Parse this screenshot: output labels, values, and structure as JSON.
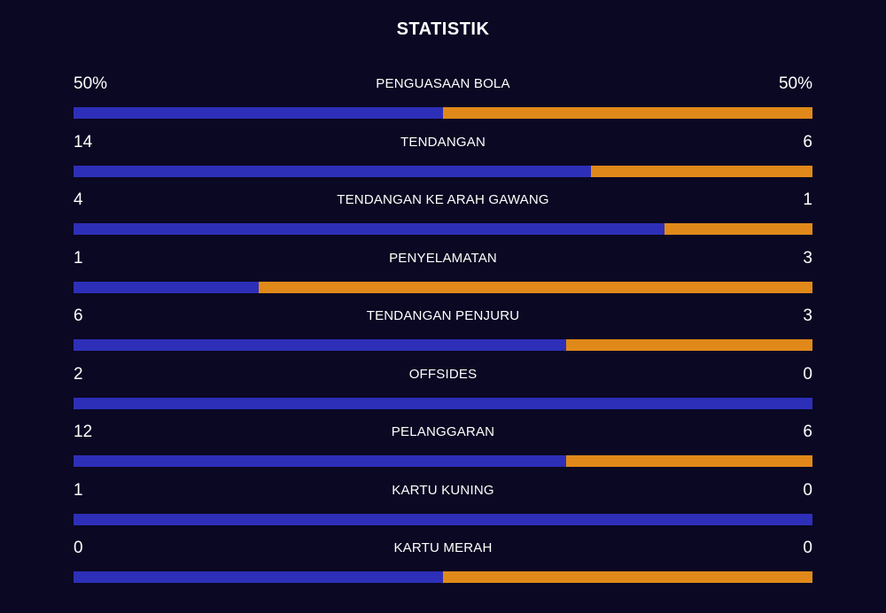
{
  "header": {
    "title": "STATISTIK"
  },
  "colors": {
    "home": "#2e2fb8",
    "away": "#e0891a",
    "background": "#0a0822"
  },
  "stats": [
    {
      "label": "PENGUASAAN BOLA",
      "home_display": "50%",
      "away_display": "50%",
      "home": 50,
      "away": 50
    },
    {
      "label": "TENDANGAN",
      "home_display": "14",
      "away_display": "6",
      "home": 14,
      "away": 6
    },
    {
      "label": "TENDANGAN KE ARAH GAWANG",
      "home_display": "4",
      "away_display": "1",
      "home": 4,
      "away": 1
    },
    {
      "label": "PENYELAMATAN",
      "home_display": "1",
      "away_display": "3",
      "home": 1,
      "away": 3
    },
    {
      "label": "TENDANGAN PENJURU",
      "home_display": "6",
      "away_display": "3",
      "home": 6,
      "away": 3
    },
    {
      "label": "OFFSIDES",
      "home_display": "2",
      "away_display": "0",
      "home": 2,
      "away": 0
    },
    {
      "label": "PELANGGARAN",
      "home_display": "12",
      "away_display": "6",
      "home": 12,
      "away": 6
    },
    {
      "label": "KARTU KUNING",
      "home_display": "1",
      "away_display": "0",
      "home": 1,
      "away": 0
    },
    {
      "label": "KARTU MERAH",
      "home_display": "0",
      "away_display": "0",
      "home": 0,
      "away": 0
    }
  ]
}
